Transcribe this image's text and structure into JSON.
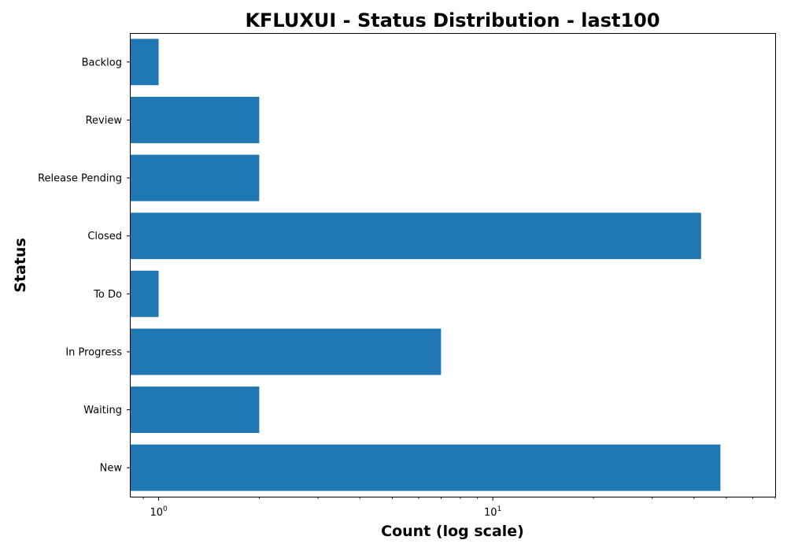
{
  "chart_data": {
    "type": "bar",
    "orientation": "horizontal",
    "title": "KFLUXUI - Status Distribution - last100",
    "xlabel": "Count (log scale)",
    "ylabel": "Status",
    "x_scale": "log",
    "x_tick_labels": [
      {
        "base": "10",
        "exp": "0",
        "value": 1
      },
      {
        "base": "10",
        "exp": "1",
        "value": 10
      }
    ],
    "xlim": [
      0.82,
      70
    ],
    "grid": false,
    "legend": "none",
    "bar_color": "#1f77b4",
    "categories": [
      "New",
      "Waiting",
      "In Progress",
      "To Do",
      "Closed",
      "Release Pending",
      "Review",
      "Backlog"
    ],
    "values": [
      48,
      2,
      7,
      1,
      42,
      2,
      2,
      1
    ]
  }
}
